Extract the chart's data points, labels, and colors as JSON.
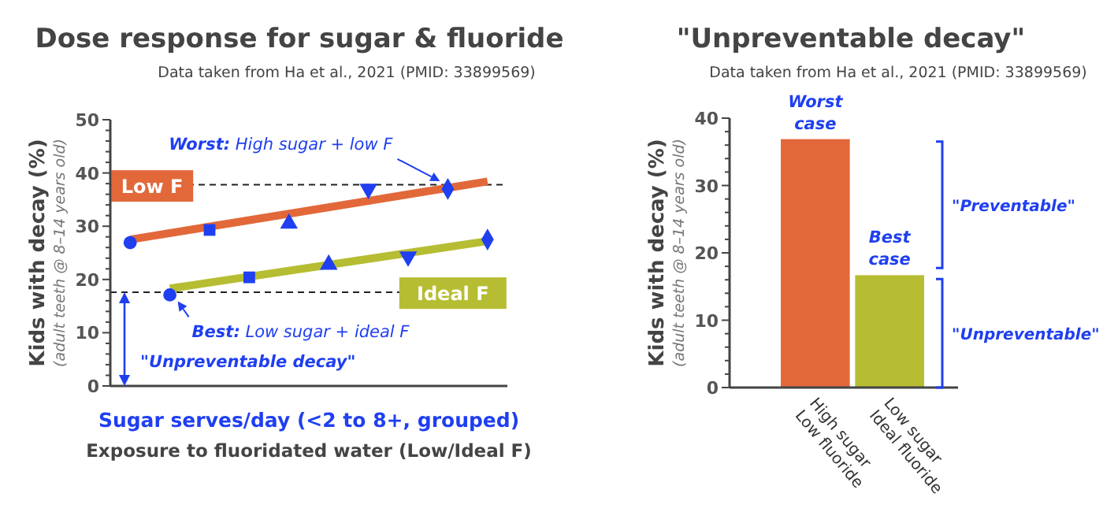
{
  "chart_data": [
    {
      "type": "scatter",
      "title": "Dose response for sugar & fluoride",
      "subtitle": "Data taken from Ha et al., 2021 (PMID: 33899569)",
      "xlabel": "Sugar serves/day (<2 to 8+, grouped)",
      "ylabel": "Kids with decay (%)\n(adult teeth @ 8–14 years old)",
      "categories": [
        null,
        null,
        null,
        null,
        null,
        null,
        null,
        null,
        null,
        null
      ],
      "ylim": [
        0,
        50
      ],
      "grid": false,
      "yticks": [
        0,
        {
          "value": 2,
          "label": null
        },
        {
          "value": 4,
          "label": null
        },
        {
          "value": 6,
          "label": null
        },
        {
          "value": 8,
          "label": null
        },
        10,
        {
          "value": 12,
          "label": null
        },
        {
          "value": 14,
          "label": null
        },
        {
          "value": 16,
          "label": null
        },
        {
          "value": 18,
          "label": null
        },
        20,
        {
          "value": 22,
          "label": null
        },
        {
          "value": 24,
          "label": null
        },
        {
          "value": 26,
          "label": null
        },
        {
          "value": 28,
          "label": null
        },
        30,
        {
          "value": 32,
          "label": null
        },
        {
          "value": 34,
          "label": null
        },
        {
          "value": 36,
          "label": null
        },
        {
          "value": 38,
          "label": null
        },
        40,
        {
          "value": 42,
          "label": null
        },
        {
          "value": 44,
          "label": null
        },
        {
          "value": 46,
          "label": null
        },
        {
          "value": 48,
          "label": null
        },
        50
      ],
      "series": [
        {
          "type": "line",
          "name": "Low F",
          "color": "#e2683a",
          "values": [
            27.5,
            null,
            null,
            null,
            null,
            null,
            null,
            null,
            null,
            38.4
          ]
        },
        {
          "type": "line",
          "name": "Ideal F",
          "color": "#b6bd32",
          "values": [
            null,
            18.3,
            null,
            null,
            null,
            null,
            null,
            null,
            null,
            27.2
          ]
        },
        {
          "type": "scatter",
          "color": "#1f3ff0",
          "marker": "circle",
          "values": [
            26.9,
            17.1,
            null,
            null,
            null,
            null,
            null,
            null,
            null,
            null
          ]
        },
        {
          "type": "scatter",
          "color": "#1f3ff0",
          "marker": "square",
          "values": [
            null,
            null,
            29.3,
            20.4,
            null,
            null,
            null,
            null,
            null,
            null
          ]
        },
        {
          "type": "scatter",
          "color": "#1f3ff0",
          "marker": "triangle",
          "values": [
            null,
            null,
            null,
            null,
            30.5,
            22.8,
            null,
            null,
            null,
            null
          ]
        },
        {
          "type": "scatter",
          "color": "#1f3ff0",
          "marker": "triangle-down",
          "values": [
            null,
            null,
            null,
            null,
            null,
            null,
            37.0,
            24.3,
            null,
            null
          ]
        },
        {
          "type": "scatter",
          "color": "#1f3ff0",
          "marker": "diamond",
          "values": [
            null,
            null,
            null,
            null,
            null,
            null,
            null,
            null,
            37.0,
            27.5
          ]
        }
      ],
      "ref_lines": [
        {
          "axis": "y",
          "value": 37.8,
          "line_style": "dashed",
          "color": "#222222"
        },
        {
          "axis": "y",
          "value": 17.6,
          "line_style": "dashed",
          "color": "#222222"
        }
      ],
      "annotations": [
        "Worst: High sugar + low F",
        "Best: Low sugar + ideal F",
        "\"Unpreventable decay\"",
        "Exposure to fluoridated water (Low/Ideal F)"
      ]
    },
    {
      "type": "bar",
      "title": "\"Unpreventable decay\"",
      "subtitle": "Data taken from Ha et al., 2021 (PMID: 33899569)",
      "ylabel": "Kids with decay (%)\n(adult teeth @ 8–14 years old)",
      "categories": [
        "High sugar\nLow fluoride",
        "Low sugar\nIdeal fluoride"
      ],
      "values": [
        37.0,
        16.8
      ],
      "colors": [
        "#e2683a",
        "#b6bd32"
      ],
      "ylim": [
        0,
        40
      ],
      "grid": false,
      "yticks": [
        0,
        {
          "value": 2,
          "label": null
        },
        {
          "value": 4,
          "label": null
        },
        {
          "value": 6,
          "label": null
        },
        {
          "value": 8,
          "label": null
        },
        10,
        {
          "value": 12,
          "label": null
        },
        {
          "value": 14,
          "label": null
        },
        {
          "value": 16,
          "label": null
        },
        {
          "value": 18,
          "label": null
        },
        20,
        {
          "value": 22,
          "label": null
        },
        {
          "value": 24,
          "label": null
        },
        {
          "value": 26,
          "label": null
        },
        {
          "value": 28,
          "label": null
        },
        30,
        {
          "value": 32,
          "label": null
        },
        {
          "value": 34,
          "label": null
        },
        {
          "value": 36,
          "label": null
        },
        {
          "value": 38,
          "label": null
        },
        40
      ],
      "annotations": [
        {
          "text": "Worst\ncase",
          "x": "High sugar\nLow fluoride",
          "y": 37.0
        },
        {
          "text": "Best\ncase",
          "x": "Low sugar\nIdeal fluoride",
          "y": 16.8
        },
        "\"Preventable\"",
        "\"Unpreventable\""
      ]
    }
  ]
}
